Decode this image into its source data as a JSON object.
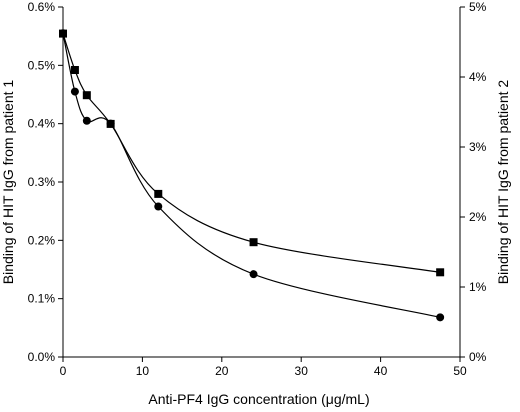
{
  "chart_data": {
    "type": "line",
    "title": "",
    "xlabel": "Anti-PF4 IgG concentration (μg/mL)",
    "ylabel": "Binding of HIT IgG from patient 1",
    "y2label": "Binding of HIT IgG from patient 2",
    "xlim": [
      0,
      50
    ],
    "ylim": [
      0,
      0.6
    ],
    "y2lim": [
      0,
      5
    ],
    "xticks": [
      0,
      10,
      20,
      30,
      40,
      50
    ],
    "xtick_labels": [
      "0",
      "10",
      "20",
      "30",
      "40",
      "50"
    ],
    "yticks": [
      0,
      0.1,
      0.2,
      0.3,
      0.4,
      0.5,
      0.6
    ],
    "ytick_labels": [
      "0.0%",
      "0.1%",
      "0.2%",
      "0.3%",
      "0.4%",
      "0.5%",
      "0.6%"
    ],
    "y2ticks": [
      0,
      1,
      2,
      3,
      4,
      5
    ],
    "y2tick_labels": [
      "0%",
      "1%",
      "2%",
      "3%",
      "4%",
      "5%"
    ],
    "grid": false,
    "legend": "none",
    "series": [
      {
        "axis": "left",
        "marker": "circle",
        "color": "#000000",
        "x": [
          0,
          1.5,
          3,
          6,
          12,
          24,
          47.5
        ],
        "y": [
          0.555,
          0.455,
          0.405,
          0.4,
          0.258,
          0.142,
          0.068
        ]
      },
      {
        "axis": "right",
        "marker": "square",
        "color": "#000000",
        "x": [
          0,
          1.5,
          3,
          6,
          12,
          24,
          47.5
        ],
        "y": [
          4.62,
          4.1,
          3.74,
          3.33,
          2.33,
          1.64,
          1.21
        ]
      }
    ]
  }
}
